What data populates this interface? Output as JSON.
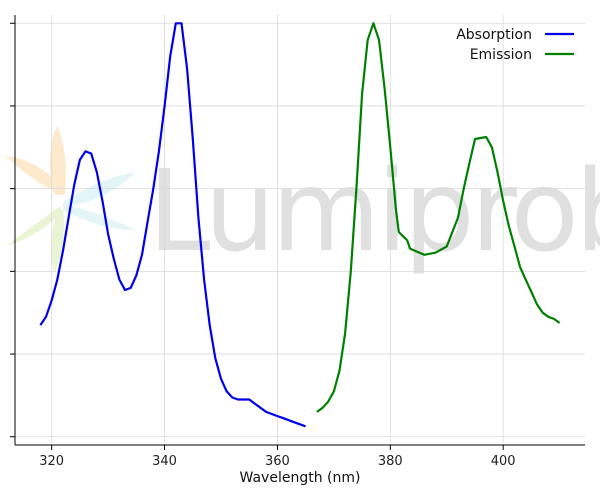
{
  "chart_data": {
    "type": "line",
    "title": "",
    "xlabel": "Wavelength (nm)",
    "ylabel": "",
    "xlim": [
      313.5,
      414.5
    ],
    "ylim": [
      -0.02,
      1.02
    ],
    "x_ticks": [
      320,
      340,
      360,
      380,
      400
    ],
    "y_ticks": [
      0.0,
      0.2,
      0.4,
      0.6,
      0.8,
      1.0
    ],
    "y_tick_labels_shown": false,
    "grid": true,
    "legend_position": "top-right",
    "watermark": {
      "text": "Lumiprobe",
      "logo": "lumiprobe-flower-logo"
    },
    "series": [
      {
        "name": "Absorption",
        "color": "#0000ee",
        "x": [
          318,
          319,
          320,
          321,
          322,
          323,
          324,
          325,
          326,
          327,
          328,
          329,
          330,
          331,
          332,
          333,
          334,
          335,
          336,
          337,
          338,
          339,
          340,
          341,
          342,
          343,
          344,
          345,
          346,
          347,
          348,
          349,
          350,
          351,
          352,
          353,
          354,
          355,
          356,
          357,
          358,
          359,
          360,
          361,
          362,
          363,
          364,
          365
        ],
        "y": [
          0.27,
          0.29,
          0.33,
          0.38,
          0.45,
          0.53,
          0.61,
          0.67,
          0.69,
          0.685,
          0.64,
          0.57,
          0.49,
          0.43,
          0.38,
          0.355,
          0.36,
          0.39,
          0.44,
          0.52,
          0.6,
          0.69,
          0.8,
          0.92,
          1.0,
          1.0,
          0.89,
          0.72,
          0.53,
          0.38,
          0.27,
          0.19,
          0.14,
          0.11,
          0.095,
          0.09,
          0.09,
          0.09,
          0.08,
          0.07,
          0.06,
          0.055,
          0.05,
          0.045,
          0.04,
          0.035,
          0.03,
          0.025
        ]
      },
      {
        "name": "Emission",
        "color": "#008000",
        "x": [
          367,
          368,
          369,
          370,
          371,
          372,
          373,
          374,
          375,
          376,
          377,
          378,
          379,
          380,
          381,
          381.5,
          383,
          383.5,
          386,
          388,
          390,
          392,
          393,
          394,
          395,
          397,
          398,
          399,
          400,
          401,
          402,
          403,
          404,
          405,
          406,
          407,
          408,
          409,
          410
        ],
        "y": [
          0.06,
          0.07,
          0.085,
          0.11,
          0.16,
          0.25,
          0.4,
          0.6,
          0.83,
          0.96,
          1.0,
          0.96,
          0.84,
          0.7,
          0.55,
          0.495,
          0.475,
          0.455,
          0.44,
          0.445,
          0.46,
          0.53,
          0.6,
          0.66,
          0.72,
          0.725,
          0.7,
          0.64,
          0.57,
          0.51,
          0.46,
          0.41,
          0.38,
          0.35,
          0.32,
          0.3,
          0.29,
          0.285,
          0.275
        ]
      }
    ]
  }
}
